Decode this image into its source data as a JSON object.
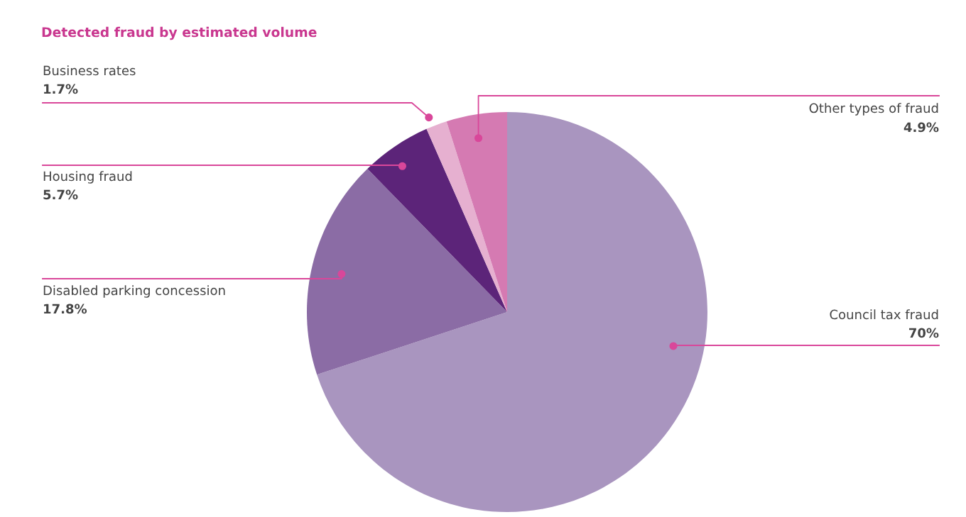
{
  "chart_data": {
    "type": "pie",
    "title": "Detected fraud by estimated volume",
    "categories": [
      "Council tax fraud",
      "Disabled parking concession",
      "Housing fraud",
      "Business rates",
      "Other types of fraud"
    ],
    "values": [
      70,
      17.8,
      5.7,
      1.7,
      4.9
    ],
    "value_labels": [
      "70%",
      "17.8%",
      "5.7%",
      "1.7%",
      "4.9%"
    ],
    "colors": [
      "#a995bf",
      "#8b6ca5",
      "#5c2479",
      "#e6b0d0",
      "#d57ab2"
    ],
    "legend": false
  }
}
